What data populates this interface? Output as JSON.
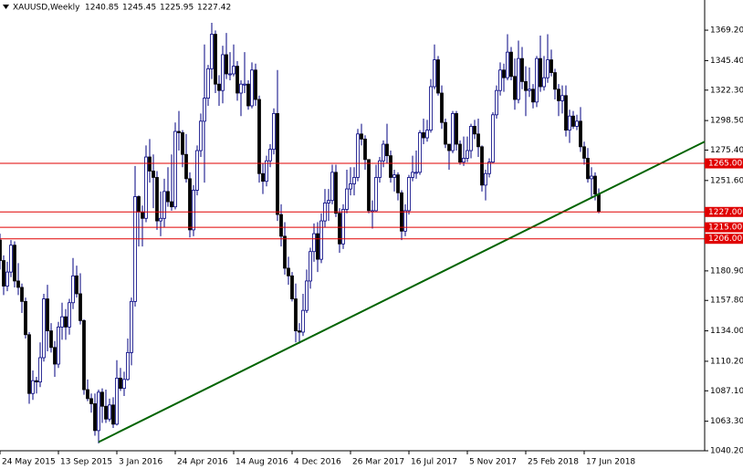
{
  "chart_data": {
    "type": "candlestick",
    "title": "XAUUSD,Weekly",
    "categories": [
      "24 May 2015",
      null,
      null,
      null,
      null,
      null,
      null,
      null,
      null,
      null,
      null,
      null,
      null,
      null,
      null,
      null,
      "13 Sep 2015",
      null,
      null,
      null,
      null,
      null,
      null,
      null,
      null,
      null,
      null,
      null,
      null,
      null,
      null,
      null,
      "3 Jan 2016",
      null,
      null,
      null,
      null,
      null,
      null,
      null,
      null,
      null,
      null,
      null,
      null,
      null,
      null,
      null,
      "24 Apr 2016",
      null,
      null,
      null,
      null,
      null,
      null,
      null,
      null,
      null,
      null,
      null,
      null,
      null,
      null,
      null,
      "14 Aug 2016",
      null,
      null,
      null,
      null,
      null,
      null,
      null,
      null,
      null,
      null,
      null,
      null,
      null,
      null,
      null,
      "4 Dec 2016",
      null,
      null,
      null,
      null,
      null,
      null,
      null,
      null,
      null,
      null,
      null,
      null,
      null,
      null,
      null,
      "26 Mar 2017",
      null,
      null,
      null,
      null,
      null,
      null,
      null,
      null,
      null,
      null,
      null,
      null,
      null,
      null,
      null,
      "16 Jul 2017",
      null,
      null,
      null,
      null,
      null,
      null,
      null,
      null,
      null,
      null,
      null,
      null,
      null,
      null,
      null,
      "5 Nov 2017",
      null,
      null,
      null,
      null,
      null,
      null,
      null,
      null,
      null,
      null,
      null,
      null,
      null,
      null,
      null,
      "25 Feb 2018",
      null,
      null,
      null,
      null,
      null,
      null,
      null,
      null,
      null,
      null,
      null,
      null,
      null,
      null,
      null,
      "17 Jun 2018",
      null,
      null,
      null,
      null
    ],
    "open": [
      1205,
      1189,
      1169,
      1180,
      1201,
      1173,
      1168,
      1157,
      1131,
      1085,
      1095,
      1094,
      1113,
      1159,
      1134,
      1121,
      1108,
      1137,
      1145,
      1137,
      1156,
      1177,
      1163,
      1142,
      1088,
      1081,
      1077,
      1056,
      1086,
      1075,
      1065,
      1076,
      1061,
      1097,
      1089,
      1096,
      1117,
      1157,
      1239,
      1227,
      1222,
      1270,
      1259,
      1254,
      1220,
      1222,
      1243,
      1235,
      1231,
      1290,
      1289,
      1272,
      1253,
      1213,
      1244,
      1275,
      1298,
      1316,
      1339,
      1366,
      1327,
      1322,
      1350,
      1335,
      1335,
      1341,
      1320,
      1327,
      1327,
      1310,
      1338,
      1315,
      1257,
      1251,
      1267,
      1276,
      1304,
      1225,
      1208,
      1183,
      1177,
      1159,
      1134,
      1133,
      1150,
      1173,
      1196,
      1210,
      1190,
      1220,
      1234,
      1236,
      1258,
      1226,
      1202,
      1229,
      1245,
      1249,
      1254,
      1288,
      1284,
      1268,
      1228,
      1228,
      1254,
      1267,
      1280,
      1271,
      1254,
      1256,
      1242,
      1212,
      1228,
      1254,
      1258,
      1258,
      1289,
      1285,
      1291,
      1325,
      1346,
      1320,
      1297,
      1280,
      1275,
      1304,
      1280,
      1266,
      1269,
      1275,
      1294,
      1288,
      1278,
      1248,
      1257,
      1266,
      1303,
      1322,
      1338,
      1332,
      1352,
      1333,
      1315,
      1347,
      1329,
      1322,
      1323,
      1313,
      1347,
      1325,
      1332,
      1346,
      1336,
      1323,
      1314,
      1318,
      1291,
      1302,
      1294,
      1298,
      1278,
      1269,
      1253,
      1255,
      1240.85
    ],
    "high": [
      1210,
      1193,
      1188,
      1205,
      1204,
      1187,
      1171,
      1160,
      1133,
      1103,
      1098,
      1125,
      1163,
      1170,
      1140,
      1126,
      1141,
      1156,
      1151,
      1159,
      1191,
      1185,
      1179,
      1143,
      1096,
      1085,
      1085,
      1088,
      1089,
      1088,
      1081,
      1082,
      1111,
      1105,
      1102,
      1128,
      1160,
      1263,
      1240,
      1232,
      1279,
      1284,
      1272,
      1259,
      1243,
      1253,
      1262,
      1272,
      1297,
      1306,
      1291,
      1288,
      1258,
      1248,
      1279,
      1304,
      1358,
      1342,
      1375,
      1369,
      1334,
      1357,
      1367,
      1352,
      1358,
      1345,
      1330,
      1352,
      1330,
      1344,
      1343,
      1318,
      1265,
      1271,
      1280,
      1308,
      1338,
      1233,
      1219,
      1192,
      1180,
      1171,
      1140,
      1163,
      1182,
      1199,
      1218,
      1219,
      1226,
      1245,
      1245,
      1264,
      1264,
      1230,
      1233,
      1260,
      1262,
      1262,
      1292,
      1296,
      1287,
      1268,
      1236,
      1264,
      1270,
      1283,
      1296,
      1275,
      1260,
      1258,
      1244,
      1233,
      1256,
      1271,
      1275,
      1291,
      1300,
      1299,
      1331,
      1358,
      1349,
      1326,
      1300,
      1280,
      1306,
      1306,
      1283,
      1286,
      1286,
      1296,
      1299,
      1300,
      1279,
      1260,
      1269,
      1305,
      1326,
      1344,
      1343,
      1366,
      1356,
      1347,
      1361,
      1356,
      1341,
      1340,
      1327,
      1349,
      1365,
      1349,
      1366,
      1354,
      1339,
      1327,
      1326,
      1326,
      1307,
      1306,
      1303,
      1309,
      1282,
      1277,
      1262,
      1258,
      1245.45
    ],
    "low": [
      1182,
      1162,
      1165,
      1176,
      1168,
      1162,
      1148,
      1128,
      1077,
      1080,
      1085,
      1090,
      1110,
      1118,
      1117,
      1098,
      1105,
      1127,
      1127,
      1131,
      1151,
      1160,
      1139,
      1084,
      1079,
      1070,
      1052,
      1046,
      1062,
      1062,
      1063,
      1058,
      1060,
      1087,
      1083,
      1095,
      1107,
      1153,
      1200,
      1200,
      1219,
      1250,
      1230,
      1213,
      1208,
      1215,
      1231,
      1228,
      1229,
      1275,
      1262,
      1250,
      1207,
      1208,
      1240,
      1270,
      1250,
      1310,
      1331,
      1320,
      1310,
      1312,
      1331,
      1330,
      1333,
      1314,
      1302,
      1320,
      1307,
      1308,
      1310,
      1250,
      1241,
      1247,
      1262,
      1272,
      1220,
      1200,
      1178,
      1170,
      1157,
      1125,
      1124,
      1130,
      1148,
      1167,
      1188,
      1180,
      1187,
      1215,
      1220,
      1233,
      1223,
      1195,
      1198,
      1226,
      1240,
      1240,
      1251,
      1279,
      1260,
      1226,
      1214,
      1227,
      1250,
      1262,
      1265,
      1250,
      1243,
      1236,
      1205,
      1208,
      1225,
      1251,
      1253,
      1256,
      1280,
      1282,
      1289,
      1323,
      1318,
      1292,
      1277,
      1260,
      1273,
      1275,
      1264,
      1263,
      1266,
      1269,
      1284,
      1270,
      1243,
      1236,
      1254,
      1265,
      1300,
      1318,
      1321,
      1330,
      1330,
      1307,
      1312,
      1323,
      1302,
      1317,
      1308,
      1309,
      1321,
      1322,
      1328,
      1333,
      1315,
      1302,
      1304,
      1286,
      1281,
      1292,
      1291,
      1274,
      1264,
      1250,
      1238,
      1236,
      1225.95
    ],
    "close": [
      1189,
      1169,
      1180,
      1201,
      1173,
      1168,
      1157,
      1131,
      1085,
      1095,
      1094,
      1113,
      1159,
      1134,
      1121,
      1108,
      1137,
      1145,
      1137,
      1156,
      1177,
      1163,
      1142,
      1088,
      1081,
      1077,
      1056,
      1086,
      1075,
      1065,
      1076,
      1061,
      1097,
      1089,
      1096,
      1117,
      1157,
      1239,
      1227,
      1222,
      1270,
      1259,
      1254,
      1220,
      1222,
      1243,
      1235,
      1231,
      1290,
      1289,
      1272,
      1253,
      1213,
      1244,
      1275,
      1298,
      1316,
      1339,
      1366,
      1327,
      1322,
      1350,
      1335,
      1335,
      1341,
      1320,
      1327,
      1327,
      1310,
      1338,
      1315,
      1257,
      1251,
      1267,
      1276,
      1304,
      1225,
      1208,
      1183,
      1177,
      1159,
      1134,
      1133,
      1150,
      1173,
      1196,
      1210,
      1190,
      1220,
      1234,
      1236,
      1258,
      1226,
      1202,
      1229,
      1245,
      1249,
      1254,
      1288,
      1284,
      1268,
      1228,
      1228,
      1254,
      1267,
      1280,
      1271,
      1254,
      1256,
      1242,
      1212,
      1228,
      1254,
      1258,
      1258,
      1289,
      1285,
      1291,
      1325,
      1346,
      1320,
      1297,
      1280,
      1275,
      1304,
      1280,
      1266,
      1269,
      1275,
      1294,
      1288,
      1278,
      1248,
      1257,
      1266,
      1303,
      1322,
      1338,
      1332,
      1352,
      1333,
      1315,
      1347,
      1329,
      1322,
      1323,
      1313,
      1347,
      1325,
      1332,
      1346,
      1336,
      1323,
      1314,
      1318,
      1291,
      1302,
      1294,
      1298,
      1278,
      1269,
      1253,
      1255,
      1241,
      1227.42
    ],
    "up_color": "#ffffff",
    "down_color": "#000000",
    "outline_color": "#000080",
    "ylim": [
      1040.2,
      1392.8
    ],
    "yticks": [
      {
        "value": 1369.2,
        "label": "1369.20"
      },
      {
        "value": 1345.4,
        "label": "1345.40"
      },
      {
        "value": 1322.3,
        "label": "1322.30"
      },
      {
        "value": 1298.5,
        "label": "1298.50"
      },
      {
        "value": 1275.4,
        "label": "1275.40"
      },
      {
        "value": 1251.6,
        "label": "1251.60"
      },
      {
        "value": 1180.9,
        "label": "1180.90"
      },
      {
        "value": 1157.8,
        "label": "1157.80"
      },
      {
        "value": 1134,
        "label": "1134.00"
      },
      {
        "value": 1110.2,
        "label": "1110.20"
      },
      {
        "value": 1087.1,
        "label": "1087.10"
      },
      {
        "value": 1063.3,
        "label": "1063.30"
      },
      {
        "value": 1040.2,
        "label": "1040.20"
      }
    ],
    "levels": {
      "values": [
        1265,
        1227,
        1215,
        1206
      ],
      "value_labels": [
        "1265.00",
        "1227.00",
        "1215.00",
        "1206.00"
      ],
      "color": "#e00000"
    },
    "trendline": {
      "values": [
        1047,
        1282
      ],
      "color": "#006400"
    },
    "grid": false
  }
}
